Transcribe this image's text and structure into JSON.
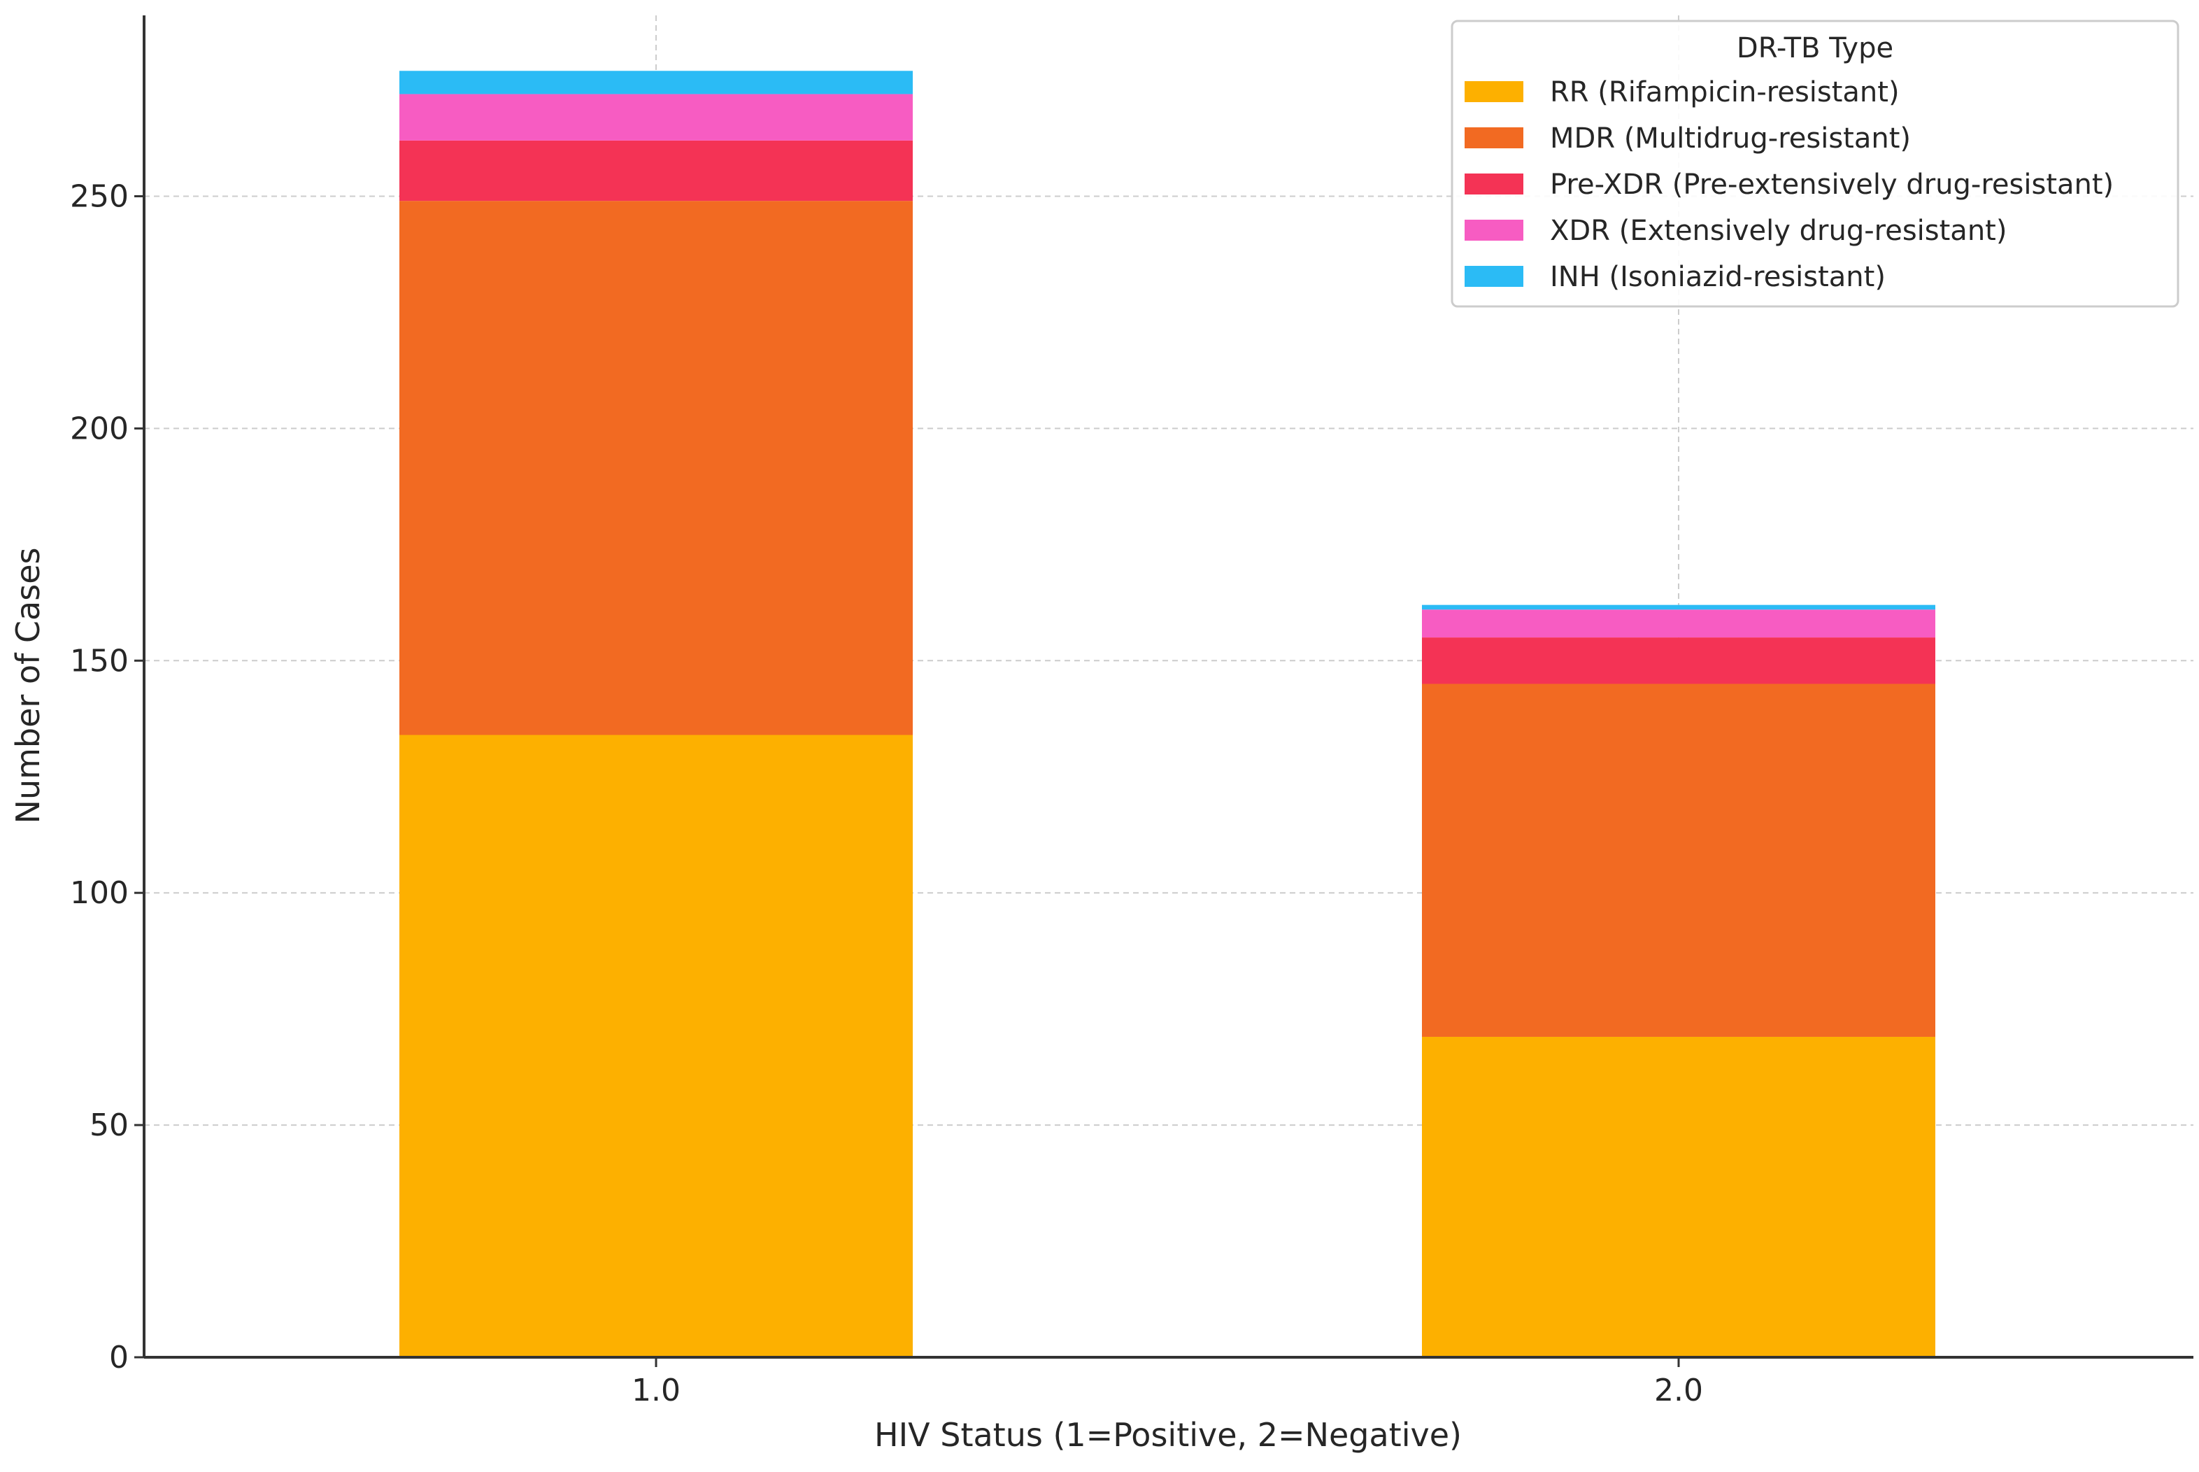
{
  "chart_data": {
    "type": "bar",
    "stacked": true,
    "title": "",
    "xlabel": "HIV Status (1=Positive, 2=Negative)",
    "ylabel": "Number of Cases",
    "categories": [
      "1.0",
      "2.0"
    ],
    "ylim": [
      0,
      290
    ],
    "yticks": [
      "0",
      "50",
      "100",
      "150",
      "200",
      "250"
    ],
    "grid": true,
    "legend": {
      "title": "DR-TB Type",
      "placement": "top-right"
    },
    "series": [
      {
        "name": "RR (Rifampicin-resistant)",
        "color": "#FDB000",
        "values": [
          134,
          69
        ]
      },
      {
        "name": "MDR (Multidrug-resistant)",
        "color": "#F26A22",
        "values": [
          115,
          76
        ]
      },
      {
        "name": "Pre-XDR (Pre-extensively drug-resistant)",
        "color": "#F43355",
        "values": [
          13,
          10
        ]
      },
      {
        "name": "XDR (Extensively drug-resistant)",
        "color": "#F75CC2",
        "values": [
          10,
          6
        ]
      },
      {
        "name": "INH (Isoniazid-resistant)",
        "color": "#2BBBF5",
        "values": [
          5,
          1
        ]
      }
    ]
  }
}
